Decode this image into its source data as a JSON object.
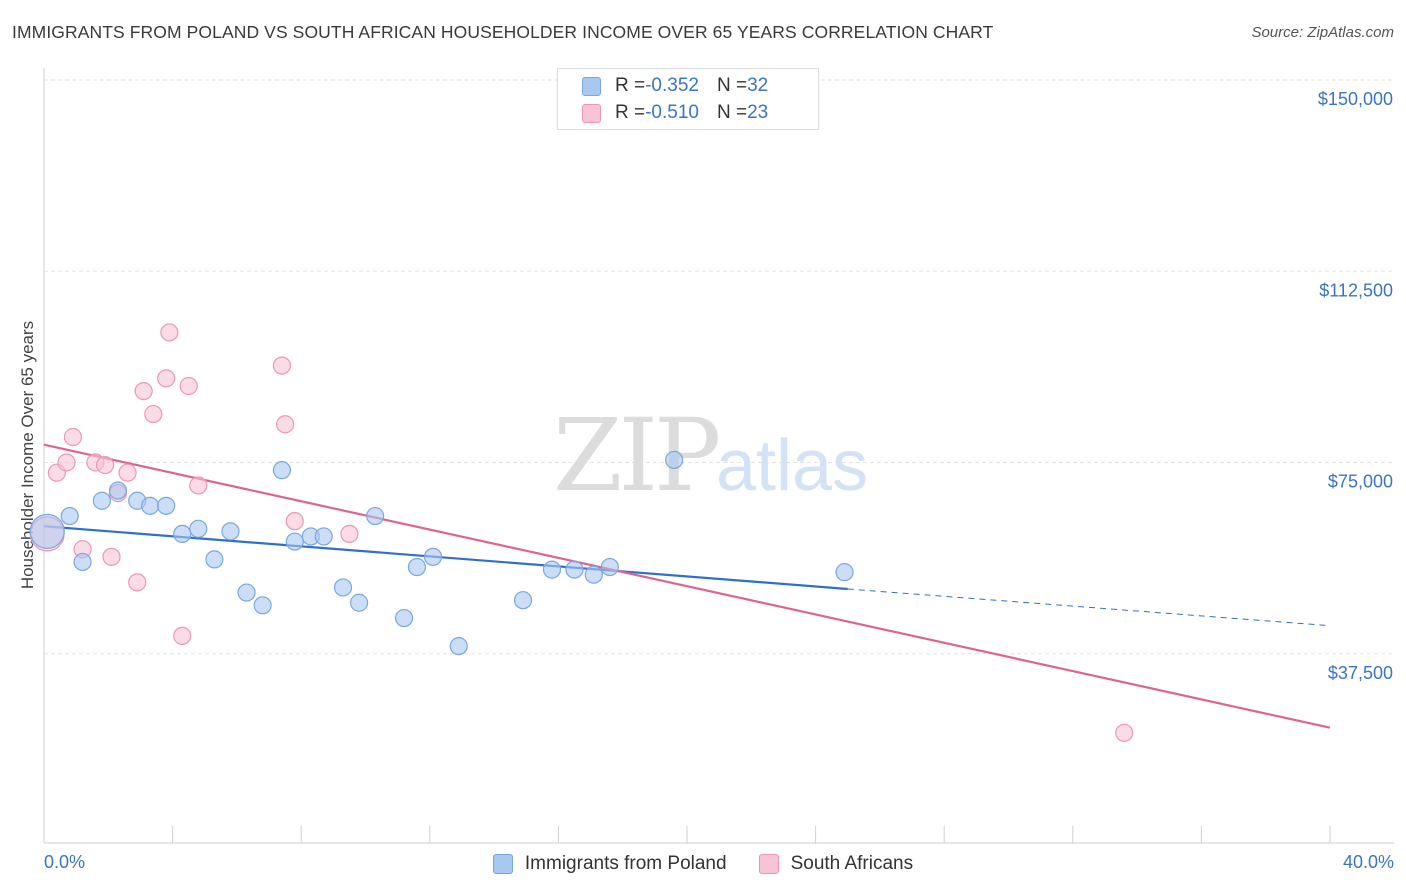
{
  "title": "IMMIGRANTS FROM POLAND VS SOUTH AFRICAN HOUSEHOLDER INCOME OVER 65 YEARS CORRELATION CHART",
  "source": "Source: ZipAtlas.com",
  "watermark": {
    "zip": "ZIP",
    "atlas": "atlas"
  },
  "legend_top": [
    {
      "r_label": "R = ",
      "r_value": "-0.352",
      "n_label": "N = ",
      "n_value": "32",
      "color": "#a9c8f0",
      "border": "#7aa6e0"
    },
    {
      "r_label": "R = ",
      "r_value": "-0.510",
      "n_label": "N = ",
      "n_value": "23",
      "color": "#f9c3d3",
      "border": "#ec97b2"
    }
  ],
  "chart_data": {
    "type": "scatter",
    "title": "IMMIGRANTS FROM POLAND VS SOUTH AFRICAN HOUSEHOLDER INCOME OVER 65 YEARS CORRELATION CHART",
    "xlabel": "",
    "ylabel": "Householder Income Over 65 years",
    "xlim": [
      0,
      40
    ],
    "ylim": [
      0,
      155000
    ],
    "x_tick_labels": [
      "0.0%",
      "40.0%"
    ],
    "y_ticks": [
      37500,
      75000,
      112500,
      150000
    ],
    "y_tick_labels": [
      "$37,500",
      "$75,000",
      "$112,500",
      "$150,000"
    ],
    "grid": true,
    "legend_position": "top-center",
    "series": [
      {
        "name": "Immigrants from Poland",
        "color": "#a9c8f0",
        "stroke": "#7aa6e0",
        "line_color": "#2f6fcf",
        "trend": {
          "x0": 0,
          "y0": 62500,
          "x1": 25,
          "y1": 50200,
          "dash_to_x": 40,
          "dash_to_y": 43000
        },
        "points": [
          {
            "x": 0.1,
            "y": 61500,
            "big": true
          },
          {
            "x": 0.8,
            "y": 64500
          },
          {
            "x": 1.2,
            "y": 55500
          },
          {
            "x": 1.8,
            "y": 67500
          },
          {
            "x": 2.3,
            "y": 69500
          },
          {
            "x": 2.9,
            "y": 67500
          },
          {
            "x": 3.3,
            "y": 66500
          },
          {
            "x": 3.8,
            "y": 66500
          },
          {
            "x": 4.3,
            "y": 61000
          },
          {
            "x": 4.8,
            "y": 62000
          },
          {
            "x": 5.3,
            "y": 56000
          },
          {
            "x": 5.8,
            "y": 61500
          },
          {
            "x": 6.3,
            "y": 49500
          },
          {
            "x": 6.8,
            "y": 47000
          },
          {
            "x": 7.4,
            "y": 73500
          },
          {
            "x": 7.8,
            "y": 59500
          },
          {
            "x": 8.3,
            "y": 60500
          },
          {
            "x": 8.7,
            "y": 60500
          },
          {
            "x": 9.3,
            "y": 50500
          },
          {
            "x": 9.8,
            "y": 47500
          },
          {
            "x": 10.3,
            "y": 64500
          },
          {
            "x": 11.2,
            "y": 44500
          },
          {
            "x": 11.6,
            "y": 54500
          },
          {
            "x": 12.1,
            "y": 56500
          },
          {
            "x": 12.9,
            "y": 39000
          },
          {
            "x": 14.9,
            "y": 48000
          },
          {
            "x": 15.8,
            "y": 54000
          },
          {
            "x": 16.5,
            "y": 54000
          },
          {
            "x": 17.1,
            "y": 53000
          },
          {
            "x": 17.6,
            "y": 54500
          },
          {
            "x": 19.6,
            "y": 75500
          },
          {
            "x": 24.9,
            "y": 53500
          }
        ]
      },
      {
        "name": "South Africans",
        "color": "#f9c3d3",
        "stroke": "#ec97b2",
        "line_color": "#e0638f",
        "trend": {
          "x0": 0,
          "y0": 78500,
          "x1": 40,
          "y1": 23000
        },
        "points": [
          {
            "x": 0.1,
            "y": 61000,
            "big": true
          },
          {
            "x": 0.4,
            "y": 73000
          },
          {
            "x": 0.7,
            "y": 75000
          },
          {
            "x": 0.9,
            "y": 80000
          },
          {
            "x": 1.2,
            "y": 58000
          },
          {
            "x": 1.6,
            "y": 75000
          },
          {
            "x": 1.9,
            "y": 74500
          },
          {
            "x": 2.1,
            "y": 56500
          },
          {
            "x": 2.3,
            "y": 69000
          },
          {
            "x": 2.6,
            "y": 73000
          },
          {
            "x": 2.9,
            "y": 51500
          },
          {
            "x": 3.1,
            "y": 89000
          },
          {
            "x": 3.4,
            "y": 84500
          },
          {
            "x": 3.8,
            "y": 91500
          },
          {
            "x": 3.9,
            "y": 100500
          },
          {
            "x": 4.3,
            "y": 41000
          },
          {
            "x": 4.5,
            "y": 90000
          },
          {
            "x": 4.8,
            "y": 70500
          },
          {
            "x": 7.4,
            "y": 94000
          },
          {
            "x": 7.5,
            "y": 82500
          },
          {
            "x": 7.8,
            "y": 63500
          },
          {
            "x": 9.5,
            "y": 61000
          },
          {
            "x": 33.6,
            "y": 22000
          }
        ]
      }
    ]
  }
}
